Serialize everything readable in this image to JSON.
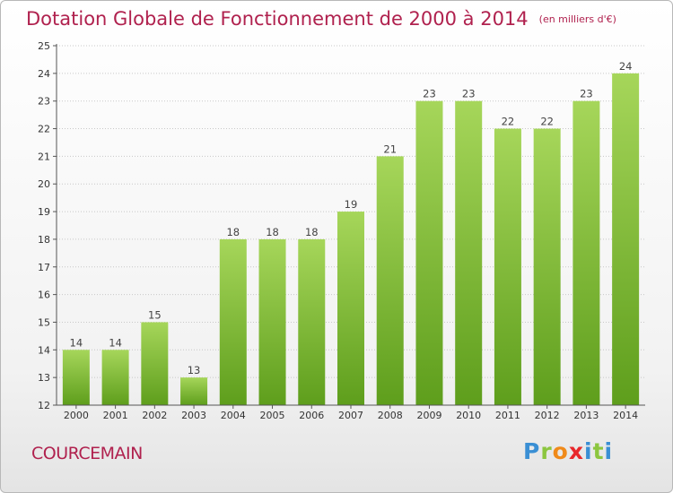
{
  "title": {
    "main": "Dotation Globale de Fonctionnement de 2000 à 2014",
    "unit": "(en milliers d'€)"
  },
  "commune": "COURCEMAIN",
  "logo": {
    "letters": [
      "P",
      "r",
      "o",
      "x",
      "i",
      "t",
      "i"
    ],
    "colors": [
      "#3a8fd4",
      "#8cc63f",
      "#f08a1a",
      "#e8272b",
      "#3a8fd4",
      "#8cc63f",
      "#3a8fd4"
    ]
  },
  "chart_data": {
    "type": "bar",
    "categories": [
      "2000",
      "2001",
      "2002",
      "2003",
      "2004",
      "2005",
      "2006",
      "2007",
      "2008",
      "2009",
      "2010",
      "2011",
      "2012",
      "2013",
      "2014"
    ],
    "values": [
      14,
      14,
      15,
      13,
      18,
      18,
      18,
      19,
      21,
      23,
      23,
      22,
      22,
      23,
      24
    ],
    "ylim": [
      12,
      25
    ],
    "yticks": [
      12,
      13,
      14,
      15,
      16,
      17,
      18,
      19,
      20,
      21,
      22,
      23,
      24,
      25
    ],
    "grid": "horizontal dotted",
    "bar_color_top": "#a6d65a",
    "bar_color_bottom": "#5e9e1c",
    "title": "Dotation Globale de Fonctionnement de 2000 à 2014",
    "xlabel": "",
    "ylabel": ""
  }
}
